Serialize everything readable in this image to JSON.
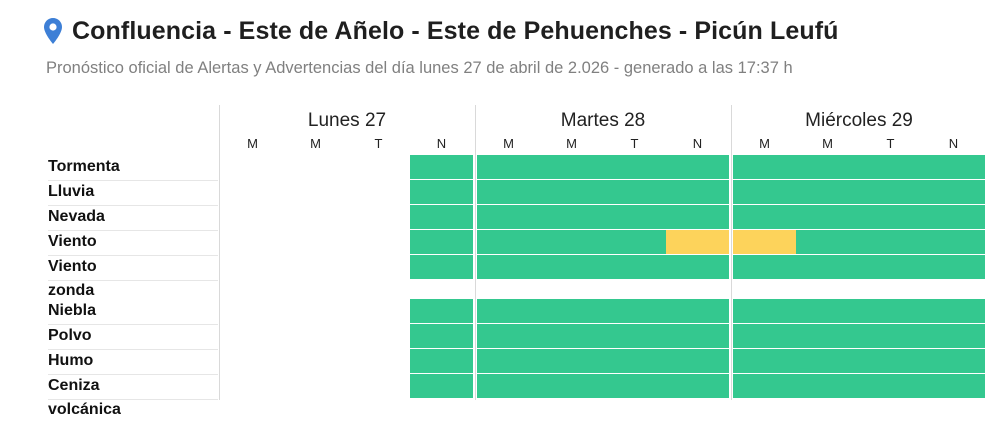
{
  "header": {
    "title": "Confluencia - Este de Añelo - Este de Pehuenches - Picún Leufú",
    "subtitle": "Pronóstico oficial de Alertas y Advertencias del día lunes 27 de abril de 2.026 - generado a las 17:37 h",
    "icon": "map-pin-icon"
  },
  "days": [
    {
      "label": "Lunes 27",
      "periods": [
        "M",
        "M",
        "T",
        "N"
      ]
    },
    {
      "label": "Martes 28",
      "periods": [
        "M",
        "M",
        "T",
        "N"
      ]
    },
    {
      "label": "Miércoles 29",
      "periods": [
        "M",
        "M",
        "T",
        "N"
      ]
    }
  ],
  "levels": {
    "none": "#ffffff",
    "green": "#34c88f",
    "yellow": "#fdd35b"
  },
  "groups": [
    {
      "rows": [
        {
          "label": "Tormenta",
          "cells": [
            "none",
            "none",
            "none",
            "green",
            "green",
            "green",
            "green",
            "green",
            "green",
            "green",
            "green",
            "green"
          ]
        },
        {
          "label": "Lluvia",
          "cells": [
            "none",
            "none",
            "none",
            "green",
            "green",
            "green",
            "green",
            "green",
            "green",
            "green",
            "green",
            "green"
          ]
        },
        {
          "label": "Nevada",
          "cells": [
            "none",
            "none",
            "none",
            "green",
            "green",
            "green",
            "green",
            "green",
            "green",
            "green",
            "green",
            "green"
          ]
        },
        {
          "label": "Viento",
          "cells": [
            "none",
            "none",
            "none",
            "green",
            "green",
            "green",
            "green",
            "yellow",
            "yellow",
            "green",
            "green",
            "green"
          ]
        },
        {
          "label": "Viento zonda",
          "cells": [
            "none",
            "none",
            "none",
            "green",
            "green",
            "green",
            "green",
            "green",
            "green",
            "green",
            "green",
            "green"
          ]
        }
      ]
    },
    {
      "rows": [
        {
          "label": "Niebla",
          "cells": [
            "none",
            "none",
            "none",
            "green",
            "green",
            "green",
            "green",
            "green",
            "green",
            "green",
            "green",
            "green"
          ]
        },
        {
          "label": "Polvo",
          "cells": [
            "none",
            "none",
            "none",
            "green",
            "green",
            "green",
            "green",
            "green",
            "green",
            "green",
            "green",
            "green"
          ]
        },
        {
          "label": "Humo",
          "cells": [
            "none",
            "none",
            "none",
            "green",
            "green",
            "green",
            "green",
            "green",
            "green",
            "green",
            "green",
            "green"
          ]
        },
        {
          "label": "Ceniza volcánica",
          "cells": [
            "none",
            "none",
            "none",
            "green",
            "green",
            "green",
            "green",
            "green",
            "green",
            "green",
            "green",
            "green"
          ]
        }
      ]
    }
  ]
}
